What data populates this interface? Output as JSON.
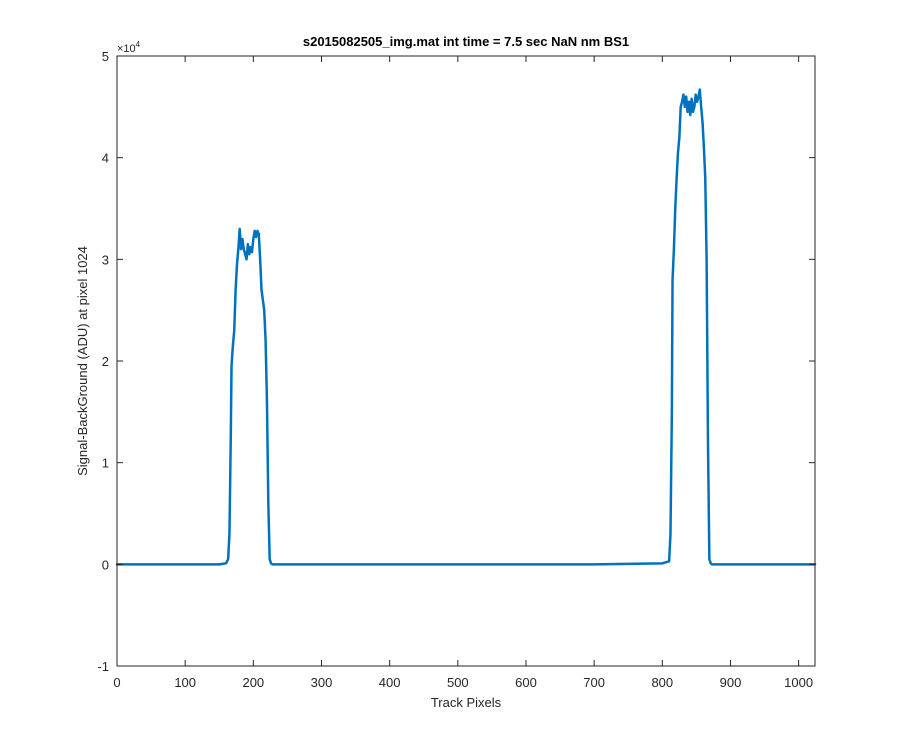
{
  "chart_data": {
    "type": "line",
    "title": "s2015082505_img.mat int time = 7.5 sec  NaN nm BS1",
    "xlabel": "Track Pixels",
    "ylabel": "Signal-BackGround (ADU) at pixel 1024",
    "xlim": [
      0,
      1024
    ],
    "ylim": [
      -1,
      5
    ],
    "y_multiplier": "×10",
    "y_multiplier_exponent": "4",
    "x_ticks": [
      0,
      100,
      200,
      300,
      400,
      500,
      600,
      700,
      800,
      900,
      1000
    ],
    "x_tick_labels": [
      "0",
      "100",
      "200",
      "300",
      "400",
      "500",
      "600",
      "700",
      "800",
      "900",
      "1000"
    ],
    "y_ticks": [
      -1,
      0,
      1,
      2,
      3,
      4,
      5
    ],
    "y_tick_labels": [
      "-1",
      "0",
      "1",
      "2",
      "3",
      "4",
      "5"
    ],
    "grid": false,
    "box": true,
    "series": [
      {
        "color": "#0072BD",
        "x": [
          0,
          100,
          150,
          160,
          163,
          165,
          167,
          168,
          170,
          172,
          174,
          176,
          178,
          180,
          182,
          184,
          186,
          188,
          190,
          192,
          194,
          196,
          198,
          200,
          202,
          204,
          206,
          208,
          210,
          212,
          214,
          216,
          218,
          220,
          222,
          224,
          226,
          228,
          230,
          232,
          240,
          300,
          400,
          500,
          600,
          700,
          800,
          810,
          812,
          814,
          815,
          817,
          819,
          821,
          823,
          825,
          827,
          829,
          831,
          833,
          835,
          837,
          839,
          841,
          843,
          845,
          847,
          849,
          851,
          853,
          855,
          857,
          859,
          861,
          863,
          865,
          867,
          869,
          871,
          873,
          875,
          877,
          880,
          900,
          1000,
          1024
        ],
        "y": [
          0,
          0,
          0,
          0.01,
          0.05,
          0.3,
          1.3,
          1.95,
          2.15,
          2.3,
          2.7,
          2.95,
          3.1,
          3.3,
          3.1,
          3.2,
          3.1,
          3.05,
          3.0,
          3.15,
          3.05,
          3.12,
          3.07,
          3.2,
          3.28,
          3.22,
          3.28,
          3.25,
          3.0,
          2.7,
          2.6,
          2.5,
          2.2,
          1.6,
          0.6,
          0.05,
          0.01,
          0,
          0,
          0,
          0,
          0,
          0,
          0,
          0,
          0,
          0.01,
          0.03,
          0.3,
          1.5,
          2.8,
          3.1,
          3.5,
          3.8,
          4.05,
          4.2,
          4.5,
          4.55,
          4.62,
          4.5,
          4.6,
          4.45,
          4.55,
          4.42,
          4.58,
          4.45,
          4.5,
          4.62,
          4.55,
          4.6,
          4.67,
          4.5,
          4.35,
          4.1,
          3.8,
          3.0,
          1.2,
          0.05,
          0.01,
          0,
          0,
          0,
          0,
          0,
          0,
          0
        ]
      }
    ]
  }
}
